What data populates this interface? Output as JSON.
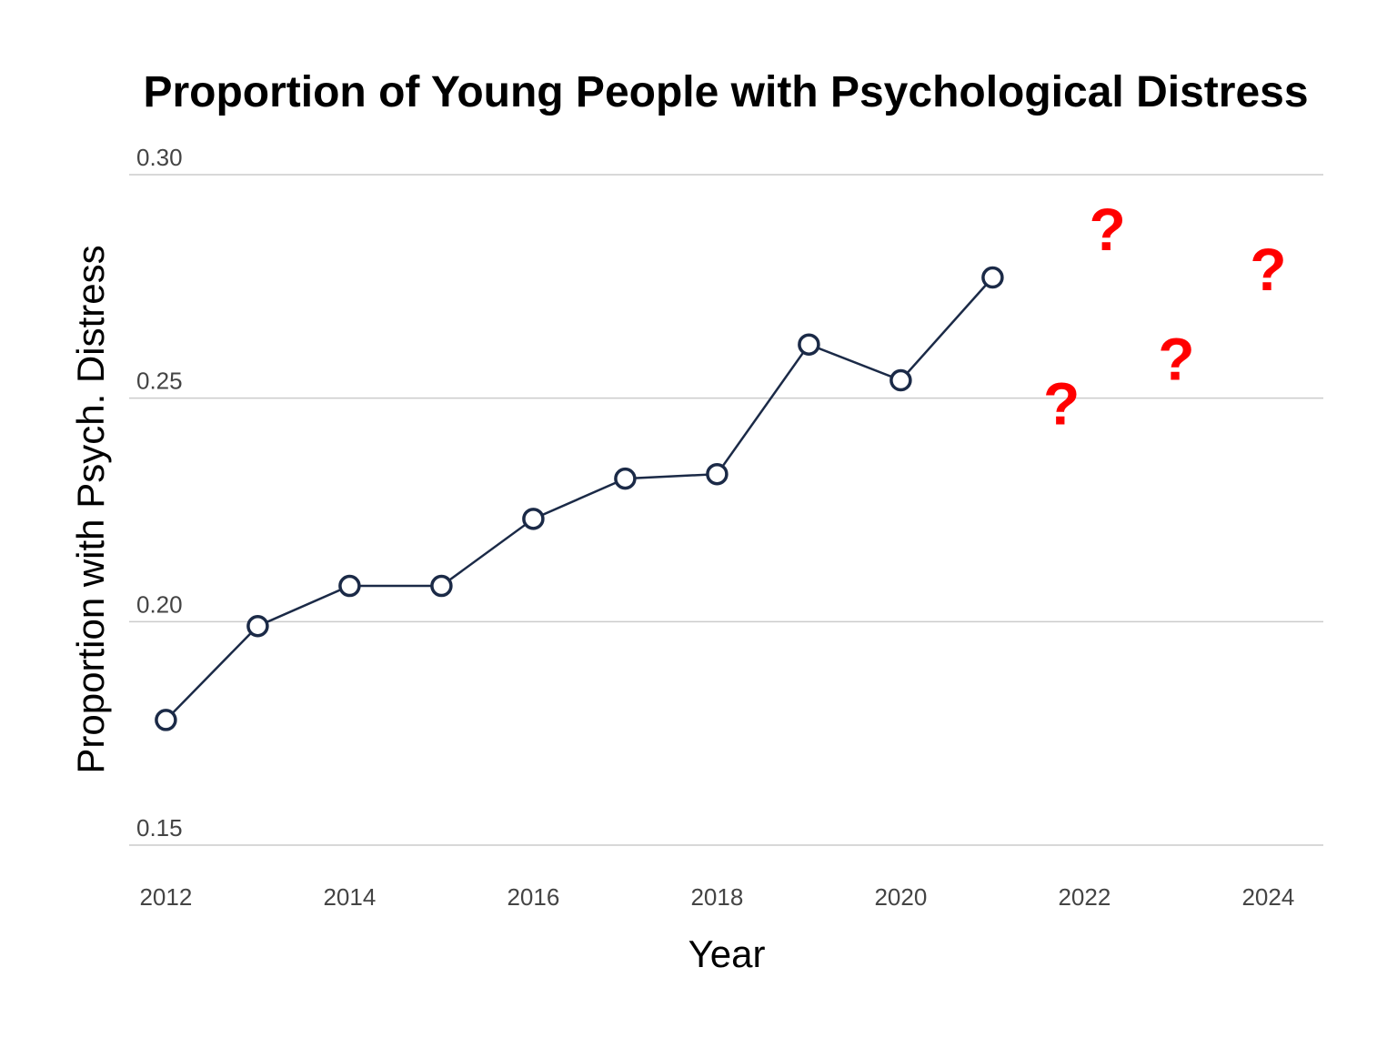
{
  "chart_data": {
    "type": "line",
    "title": "Proportion of Young People with Psychological Distress",
    "xlabel": "Year",
    "ylabel": "Proportion with Psych. Distress",
    "xlim": [
      2011.6,
      2024.6
    ],
    "ylim": [
      0.15,
      0.3
    ],
    "x_ticks": [
      2012,
      2014,
      2016,
      2018,
      2020,
      2022,
      2024
    ],
    "y_ticks": [
      "0.15",
      "0.20",
      "0.25",
      "0.30"
    ],
    "y_tick_values": [
      0.15,
      0.2,
      0.25,
      0.3
    ],
    "grid": "horizontal",
    "legend": "none",
    "series": [
      {
        "x": [
          2012,
          2013,
          2014,
          2015,
          2016,
          2017,
          2018,
          2019,
          2020,
          2021
        ],
        "values": [
          0.178,
          0.199,
          0.208,
          0.208,
          0.223,
          0.232,
          0.233,
          0.262,
          0.254,
          0.277
        ],
        "color": "#1b2a47"
      }
    ],
    "annotations": [
      {
        "text": "?",
        "x": 2021.75,
        "y": 0.249,
        "color": "#ff0000"
      },
      {
        "text": "?",
        "x": 2022.25,
        "y": 0.288,
        "color": "#ff0000"
      },
      {
        "text": "?",
        "x": 2023.0,
        "y": 0.259,
        "color": "#ff0000"
      },
      {
        "text": "?",
        "x": 2024.0,
        "y": 0.279,
        "color": "#ff0000"
      }
    ]
  }
}
